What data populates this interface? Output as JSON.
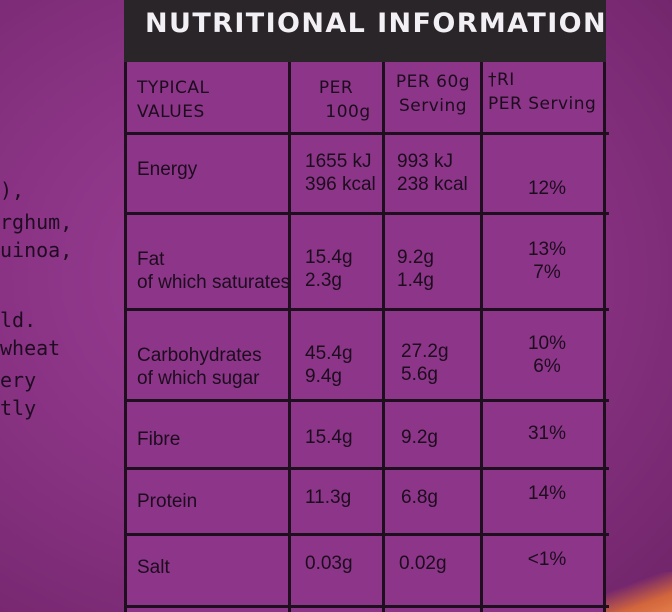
{
  "left_text": [
    "),",
    "rghum,",
    "uinoa,",
    "ld.",
    "wheat",
    "ery",
    "tly"
  ],
  "title": "NUTRITIONAL INFORMATION",
  "header": {
    "typical_values": [
      "TYPICAL",
      "VALUES"
    ],
    "per_100g": [
      "PER",
      "100g"
    ],
    "per_serving": [
      "PER 60g",
      "Serving"
    ],
    "ri": [
      "†RI",
      "PER Serving"
    ]
  },
  "rows": [
    {
      "label": [
        "Energy"
      ],
      "per100": [
        "1655 kJ",
        "396 kcal"
      ],
      "serving": [
        "993 kJ",
        "238 kcal"
      ],
      "ri": [
        "12%"
      ]
    },
    {
      "label": [
        "Fat",
        "of which saturates"
      ],
      "per100": [
        "15.4g",
        "2.3g"
      ],
      "serving": [
        "9.2g",
        "1.4g"
      ],
      "ri": [
        "13%",
        "7%"
      ]
    },
    {
      "label": [
        "Carbohydrates",
        "of which sugar"
      ],
      "per100": [
        "45.4g",
        "9.4g"
      ],
      "serving": [
        "27.2g",
        "5.6g"
      ],
      "ri": [
        "10%",
        "6%"
      ]
    },
    {
      "label": [
        "Fibre"
      ],
      "per100": [
        "15.4g"
      ],
      "serving": [
        "9.2g"
      ],
      "ri": [
        "31%"
      ]
    },
    {
      "label": [
        "Protein"
      ],
      "per100": [
        "11.3g"
      ],
      "serving": [
        "6.8g"
      ],
      "ri": [
        "14%"
      ]
    },
    {
      "label": [
        "Salt"
      ],
      "per100": [
        "0.03g"
      ],
      "serving": [
        "0.02g"
      ],
      "ri": [
        "<1%"
      ]
    }
  ]
}
